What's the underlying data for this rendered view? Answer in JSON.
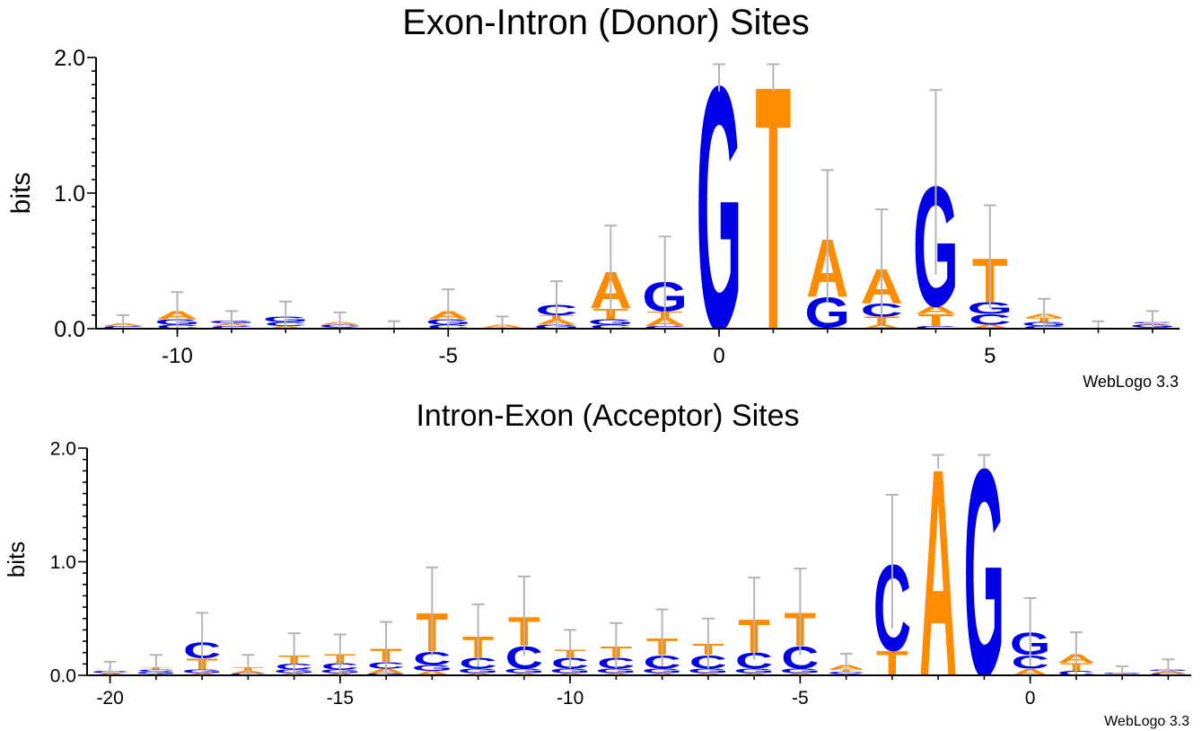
{
  "colors": {
    "G": "#0000e6",
    "C": "#0000e6",
    "A": "#ff8c00",
    "T": "#ff8c00",
    "error_bar": "#b4b4b4",
    "axis": "#000000"
  },
  "chart_data": [
    {
      "type": "sequence-logo",
      "title": "Exon-Intron (Donor) Sites",
      "ylabel": "bits",
      "xlabel": "",
      "ylim": [
        0,
        2.0
      ],
      "yticks": [
        "0.0",
        "1.0",
        "2.0"
      ],
      "xlim": [
        -11.5,
        8.5
      ],
      "xticks": [
        -10,
        -5,
        0,
        5
      ],
      "xtick_labels": [
        "-10",
        "-5",
        "0",
        "5"
      ],
      "credit": "WebLogo 3.3",
      "positions": [
        {
          "pos": -11,
          "letters": [
            [
              "C",
              0.02
            ],
            [
              "A",
              0.02
            ]
          ],
          "err": 0.12
        },
        {
          "pos": -10,
          "letters": [
            [
              "C",
              0.03
            ],
            [
              "G",
              0.04
            ],
            [
              "A",
              0.06
            ]
          ],
          "err": 0.28
        },
        {
          "pos": -9,
          "letters": [
            [
              "C",
              0.02
            ],
            [
              "A",
              0.02
            ],
            [
              "G",
              0.02
            ]
          ],
          "err": 0.14
        },
        {
          "pos": -8,
          "letters": [
            [
              "A",
              0.02
            ],
            [
              "C",
              0.03
            ],
            [
              "G",
              0.04
            ]
          ],
          "err": 0.22
        },
        {
          "pos": -7,
          "letters": [
            [
              "G",
              0.01
            ],
            [
              "C",
              0.02
            ],
            [
              "A",
              0.02
            ]
          ],
          "err": 0.14
        },
        {
          "pos": -6,
          "letters": [
            [
              "A",
              0.005
            ]
          ],
          "err": 0.1
        },
        {
          "pos": -5,
          "letters": [
            [
              "C",
              0.03
            ],
            [
              "G",
              0.04
            ],
            [
              "A",
              0.06
            ]
          ],
          "err": 0.32
        },
        {
          "pos": -4,
          "letters": [
            [
              "T",
              0.01
            ],
            [
              "A",
              0.02
            ]
          ],
          "err": 0.12
        },
        {
          "pos": -3,
          "letters": [
            [
              "G",
              0.03
            ],
            [
              "A",
              0.04
            ],
            [
              "T",
              0.03
            ],
            [
              "C",
              0.08
            ]
          ],
          "err": 0.34
        },
        {
          "pos": -2,
          "letters": [
            [
              "C",
              0.03
            ],
            [
              "G",
              0.04
            ],
            [
              "T",
              0.08
            ],
            [
              "A",
              0.28
            ]
          ],
          "err": 0.66
        },
        {
          "pos": -1,
          "letters": [
            [
              "C",
              0.02
            ],
            [
              "A",
              0.06
            ],
            [
              "T",
              0.05
            ],
            [
              "G",
              0.22
            ]
          ],
          "err": 0.66
        },
        {
          "pos": 0,
          "letters": [
            [
              "G",
              1.85
            ]
          ],
          "err": 0.2
        },
        {
          "pos": 1,
          "letters": [
            [
              "T",
              1.85
            ]
          ],
          "err": 0.2
        },
        {
          "pos": 2,
          "letters": [
            [
              "C",
              0.01
            ],
            [
              "G",
              0.23
            ],
            [
              "A",
              0.44
            ]
          ],
          "err": 0.98
        },
        {
          "pos": 3,
          "letters": [
            [
              "A",
              0.03
            ],
            [
              "T",
              0.06
            ],
            [
              "C",
              0.1
            ],
            [
              "A",
              0.26
            ]
          ],
          "err": 0.86
        },
        {
          "pos": 4,
          "letters": [
            [
              "C",
              0.02
            ],
            [
              "T",
              0.09
            ],
            [
              "A",
              0.06
            ],
            [
              "G",
              0.91
            ]
          ],
          "err": 1.36
        },
        {
          "pos": 5,
          "letters": [
            [
              "A",
              0.03
            ],
            [
              "C",
              0.08
            ],
            [
              "G",
              0.09
            ],
            [
              "T",
              0.33
            ]
          ],
          "err": 0.76
        },
        {
          "pos": 6,
          "letters": [
            [
              "C",
              0.02
            ],
            [
              "G",
              0.03
            ],
            [
              "T",
              0.03
            ],
            [
              "A",
              0.03
            ]
          ],
          "err": 0.22
        },
        {
          "pos": 7,
          "letters": [
            [
              "A",
              0.005
            ]
          ],
          "err": 0.1
        },
        {
          "pos": 8,
          "letters": [
            [
              "C",
              0.01
            ],
            [
              "G",
              0.02
            ],
            [
              "A",
              0.01
            ],
            [
              "C",
              0.01
            ]
          ],
          "err": 0.16
        }
      ]
    },
    {
      "type": "sequence-logo",
      "title": "Intron-Exon (Acceptor) Sites",
      "ylabel": "bits",
      "xlabel": "",
      "ylim": [
        0,
        2.0
      ],
      "yticks": [
        "0.0",
        "1.0",
        "2.0"
      ],
      "xlim": [
        -20.5,
        3.5
      ],
      "xticks": [
        -20,
        -15,
        -10,
        -5,
        0
      ],
      "xtick_labels": [
        "-20",
        "-15",
        "-10",
        "-5",
        "0"
      ],
      "credit": "WebLogo 3.3",
      "positions": [
        {
          "pos": -20,
          "letters": [
            [
              "A",
              0.02
            ],
            [
              "C",
              0.02
            ]
          ],
          "err": 0.16
        },
        {
          "pos": -19,
          "letters": [
            [
              "A",
              0.01
            ],
            [
              "G",
              0.02
            ],
            [
              "C",
              0.02
            ],
            [
              "T",
              0.02
            ]
          ],
          "err": 0.22
        },
        {
          "pos": -18,
          "letters": [
            [
              "A",
              0.02
            ],
            [
              "G",
              0.03
            ],
            [
              "T",
              0.1
            ],
            [
              "C",
              0.14
            ]
          ],
          "err": 0.52
        },
        {
          "pos": -17,
          "letters": [
            [
              "C",
              0.02
            ],
            [
              "A",
              0.02
            ],
            [
              "T",
              0.03
            ]
          ],
          "err": 0.22
        },
        {
          "pos": -16,
          "letters": [
            [
              "A",
              0.02
            ],
            [
              "G",
              0.03
            ],
            [
              "C",
              0.05
            ],
            [
              "T",
              0.08
            ]
          ],
          "err": 0.38
        },
        {
          "pos": -15,
          "letters": [
            [
              "A",
              0.02
            ],
            [
              "G",
              0.03
            ],
            [
              "C",
              0.06
            ],
            [
              "T",
              0.08
            ]
          ],
          "err": 0.34
        },
        {
          "pos": -14,
          "letters": [
            [
              "G",
              0.02
            ],
            [
              "A",
              0.04
            ],
            [
              "C",
              0.06
            ],
            [
              "T",
              0.12
            ]
          ],
          "err": 0.46
        },
        {
          "pos": -13,
          "letters": [
            [
              "A",
              0.04
            ],
            [
              "G",
              0.05
            ],
            [
              "C",
              0.12
            ],
            [
              "T",
              0.35
            ]
          ],
          "err": 0.78
        },
        {
          "pos": -12,
          "letters": [
            [
              "A",
              0.02
            ],
            [
              "G",
              0.04
            ],
            [
              "C",
              0.1
            ],
            [
              "T",
              0.19
            ]
          ],
          "err": 0.55
        },
        {
          "pos": -11,
          "letters": [
            [
              "A",
              0.02
            ],
            [
              "G",
              0.04
            ],
            [
              "C",
              0.2
            ],
            [
              "T",
              0.26
            ]
          ],
          "err": 0.7
        },
        {
          "pos": -10,
          "letters": [
            [
              "A",
              0.02
            ],
            [
              "G",
              0.04
            ],
            [
              "C",
              0.1
            ],
            [
              "T",
              0.07
            ]
          ],
          "err": 0.34
        },
        {
          "pos": -9,
          "letters": [
            [
              "A",
              0.02
            ],
            [
              "G",
              0.04
            ],
            [
              "C",
              0.1
            ],
            [
              "T",
              0.1
            ]
          ],
          "err": 0.4
        },
        {
          "pos": -8,
          "letters": [
            [
              "A",
              0.02
            ],
            [
              "G",
              0.04
            ],
            [
              "C",
              0.12
            ],
            [
              "T",
              0.15
            ]
          ],
          "err": 0.5
        },
        {
          "pos": -7,
          "letters": [
            [
              "A",
              0.02
            ],
            [
              "G",
              0.04
            ],
            [
              "C",
              0.12
            ],
            [
              "T",
              0.1
            ]
          ],
          "err": 0.44
        },
        {
          "pos": -6,
          "letters": [
            [
              "A",
              0.02
            ],
            [
              "G",
              0.04
            ],
            [
              "C",
              0.14
            ],
            [
              "T",
              0.3
            ]
          ],
          "err": 0.72
        },
        {
          "pos": -5,
          "letters": [
            [
              "A",
              0.02
            ],
            [
              "G",
              0.04
            ],
            [
              "C",
              0.2
            ],
            [
              "T",
              0.3
            ]
          ],
          "err": 0.76
        },
        {
          "pos": -4,
          "letters": [
            [
              "G",
              0.01
            ],
            [
              "C",
              0.02
            ],
            [
              "T",
              0.02
            ],
            [
              "A",
              0.04
            ]
          ],
          "err": 0.2
        },
        {
          "pos": -3,
          "letters": [
            [
              "T",
              0.22
            ],
            [
              "C",
              0.78
            ]
          ],
          "err": 1.18
        },
        {
          "pos": -2,
          "letters": [
            [
              "A",
              1.88
            ]
          ],
          "err": 0.12
        },
        {
          "pos": -1,
          "letters": [
            [
              "G",
              1.88
            ]
          ],
          "err": 0.12
        },
        {
          "pos": 0,
          "letters": [
            [
              "A",
              0.06
            ],
            [
              "C",
              0.12
            ],
            [
              "G",
              0.2
            ]
          ],
          "err": 0.6
        },
        {
          "pos": 1,
          "letters": [
            [
              "C",
              0.04
            ],
            [
              "T",
              0.07
            ],
            [
              "A",
              0.08
            ]
          ],
          "err": 0.38
        },
        {
          "pos": 2,
          "letters": [
            [
              "A",
              0.01
            ],
            [
              "G",
              0.01
            ]
          ],
          "err": 0.12
        },
        {
          "pos": 3,
          "letters": [
            [
              "C",
              0.02
            ],
            [
              "A",
              0.02
            ],
            [
              "G",
              0.01
            ]
          ],
          "err": 0.18
        }
      ]
    }
  ]
}
